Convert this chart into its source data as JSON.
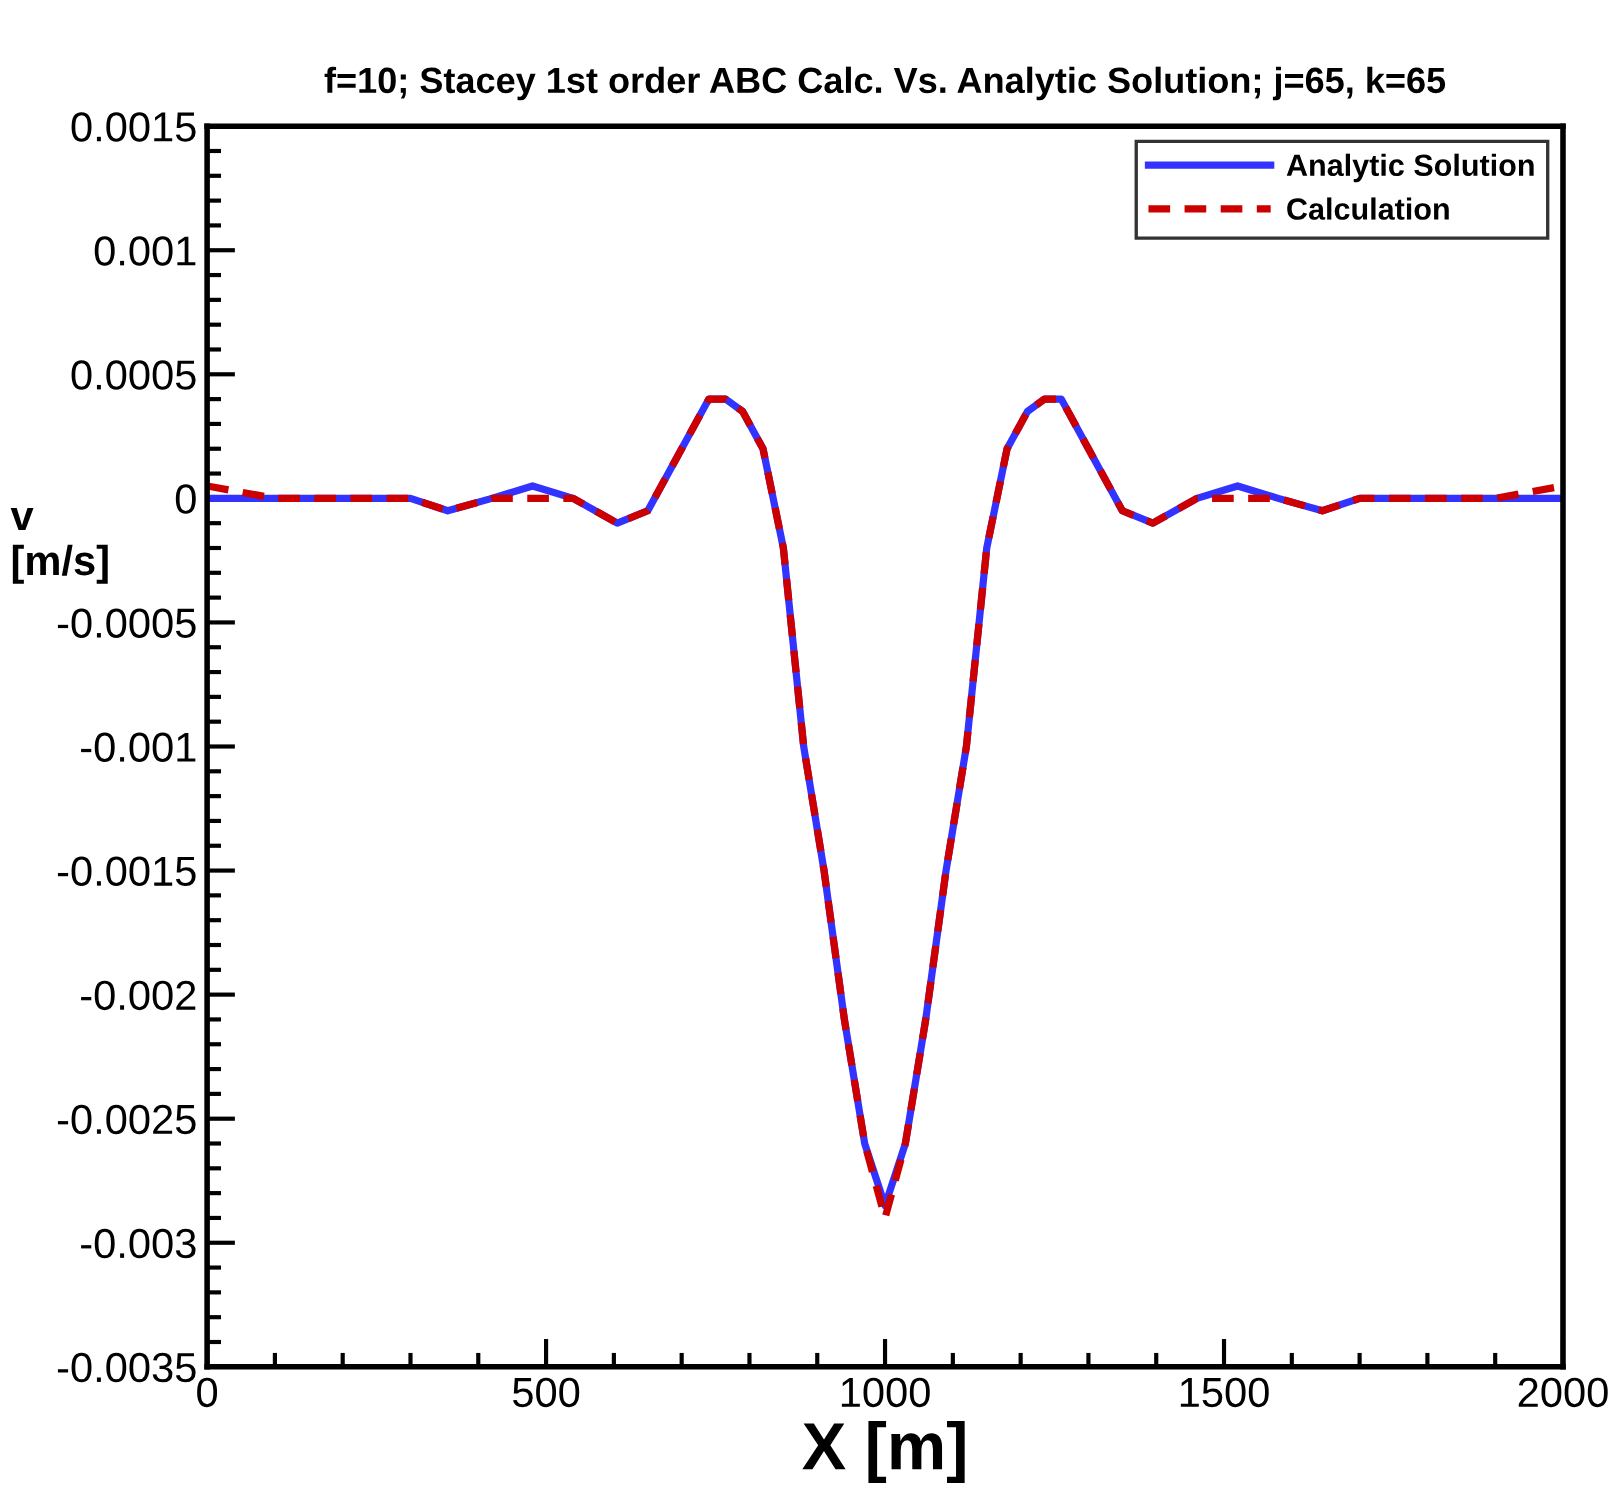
{
  "chart_data": {
    "type": "line",
    "title": "f=10; Stacey 1st order ABC Calc. Vs. Analytic Solution; j=65, k=65",
    "xlabel": "X [m]",
    "ylabel": "v\n[m/s]",
    "xlim": [
      0,
      2000
    ],
    "xticks": [
      0,
      500,
      1000,
      1500,
      2000
    ],
    "ylim": [
      -0.0035,
      0.0015
    ],
    "yticks": [
      {
        "value": -0.0035,
        "label": "-0.0035"
      },
      {
        "value": -0.003,
        "label": "-0.003"
      },
      {
        "value": -0.0025,
        "label": "-0.0025"
      },
      {
        "value": -0.002,
        "label": "-0.002"
      },
      {
        "value": -0.0015,
        "label": "-0.0015"
      },
      {
        "value": -0.001,
        "label": "-0.001"
      },
      {
        "value": -0.0005,
        "label": "-0.0005"
      },
      {
        "value": 0,
        "label": "0"
      },
      {
        "value": 0.0005,
        "label": "0.0005"
      },
      {
        "value": 0.001,
        "label": "0.001"
      },
      {
        "value": 0.0015,
        "label": "0.0015"
      }
    ],
    "x": [
      0,
      100,
      220,
      300,
      355,
      420,
      480,
      540,
      605,
      650,
      700,
      740,
      765,
      790,
      820,
      850,
      880,
      910,
      940,
      970,
      1000,
      1030,
      1060,
      1090,
      1120,
      1150,
      1180,
      1210,
      1235,
      1260,
      1300,
      1350,
      1395,
      1460,
      1520,
      1580,
      1645,
      1700,
      1780,
      1900,
      2000
    ],
    "series": [
      {
        "name": "Analytic Solution",
        "color": "#3333ff",
        "line_style": "solid",
        "values": [
          0,
          0,
          0,
          0,
          -5e-05,
          0,
          5e-05,
          0,
          -0.0001,
          -5e-05,
          0.0002,
          0.0004,
          0.0004,
          0.00035,
          0.0002,
          -0.0002,
          -0.001,
          -0.0015,
          -0.0021,
          -0.0026,
          -0.00285,
          -0.0026,
          -0.0021,
          -0.0015,
          -0.001,
          -0.0002,
          0.0002,
          0.00035,
          0.0004,
          0.0004,
          0.0002,
          -5e-05,
          -0.0001,
          0,
          5e-05,
          0,
          -5e-05,
          0,
          0,
          0,
          0
        ]
      },
      {
        "name": "Calculation",
        "color": "#cc0000",
        "line_style": "dashed",
        "values": [
          5e-05,
          0,
          0,
          0,
          -5e-05,
          0,
          0,
          0,
          -0.0001,
          -5e-05,
          0.0002,
          0.0004,
          0.0004,
          0.00035,
          0.0002,
          -0.0002,
          -0.001,
          -0.0015,
          -0.0021,
          -0.0026,
          -0.0029,
          -0.0026,
          -0.0021,
          -0.0015,
          -0.001,
          -0.0002,
          0.0002,
          0.00035,
          0.0004,
          0.0004,
          0.0002,
          -5e-05,
          -0.0001,
          0,
          0,
          0,
          -5e-05,
          0,
          0,
          0,
          5e-05
        ]
      }
    ],
    "legend": "top right",
    "grid": false
  }
}
